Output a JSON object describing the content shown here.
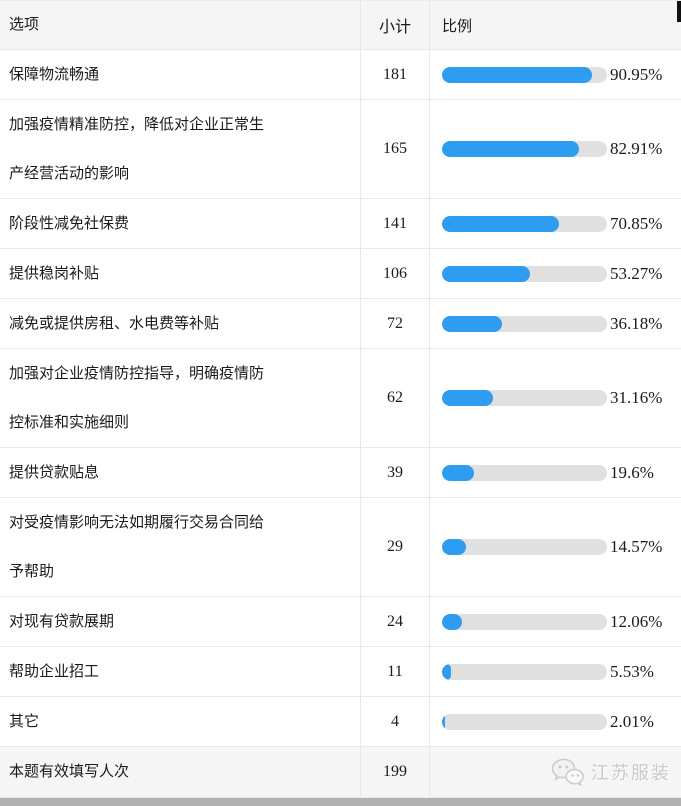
{
  "table": {
    "headers": {
      "option": "选项",
      "subtotal": "小计",
      "ratio": "比例"
    },
    "rows": [
      {
        "option": "保障物流畅通",
        "subtotal": "181",
        "percent": 90.95,
        "percent_label": "90.95%"
      },
      {
        "option": "加强疫情精准防控，降低对企业正常生产经营活动的影响",
        "subtotal": "165",
        "percent": 82.91,
        "percent_label": "82.91%"
      },
      {
        "option": "阶段性减免社保费",
        "subtotal": "141",
        "percent": 70.85,
        "percent_label": "70.85%"
      },
      {
        "option": "提供稳岗补贴",
        "subtotal": "106",
        "percent": 53.27,
        "percent_label": "53.27%"
      },
      {
        "option": "减免或提供房租、水电费等补贴",
        "subtotal": "72",
        "percent": 36.18,
        "percent_label": "36.18%"
      },
      {
        "option": "加强对企业疫情防控指导，明确疫情防控标准和实施细则",
        "subtotal": "62",
        "percent": 31.16,
        "percent_label": "31.16%"
      },
      {
        "option": "提供贷款贴息",
        "subtotal": "39",
        "percent": 19.6,
        "percent_label": "19.6%"
      },
      {
        "option": "对受疫情影响无法如期履行交易合同给予帮助",
        "subtotal": "29",
        "percent": 14.57,
        "percent_label": "14.57%"
      },
      {
        "option": "对现有贷款展期",
        "subtotal": "24",
        "percent": 12.06,
        "percent_label": "12.06%"
      },
      {
        "option": "帮助企业招工",
        "subtotal": "11",
        "percent": 5.53,
        "percent_label": "5.53%"
      },
      {
        "option": "其它",
        "subtotal": "4",
        "percent": 2.01,
        "percent_label": "2.01%"
      }
    ],
    "footer": {
      "option": "本题有效填写人次",
      "subtotal": "199"
    }
  },
  "watermark": {
    "icon": "wechat-icon",
    "text": "江苏服装"
  },
  "colors": {
    "bar_fill": "#2e9cf0",
    "bar_track": "#e0e0e0",
    "header_bg": "#f5f5f5",
    "row_border": "#e9e9e9",
    "bottom_strip": "#b1b1b1",
    "watermark_text": "#c9c9c9"
  },
  "chart_data": {
    "type": "bar",
    "orientation": "horizontal",
    "categories": [
      "保障物流畅通",
      "加强疫情精准防控，降低对企业正常生产经营活动的影响",
      "阶段性减免社保费",
      "提供稳岗补贴",
      "减免或提供房租、水电费等补贴",
      "加强对企业疫情防控指导，明确疫情防控标准和实施细则",
      "提供贷款贴息",
      "对受疫情影响无法如期履行交易合同给予帮助",
      "对现有贷款展期",
      "帮助企业招工",
      "其它"
    ],
    "series": [
      {
        "name": "小计",
        "values": [
          181,
          165,
          141,
          106,
          72,
          62,
          39,
          29,
          24,
          11,
          4
        ]
      },
      {
        "name": "比例(%)",
        "values": [
          90.95,
          82.91,
          70.85,
          53.27,
          36.18,
          31.16,
          19.6,
          14.57,
          12.06,
          5.53,
          2.01
        ]
      }
    ],
    "total_label": "本题有效填写人次",
    "total_value": 199,
    "xlim": [
      0,
      100
    ],
    "legend_position": "none",
    "grid": false
  }
}
